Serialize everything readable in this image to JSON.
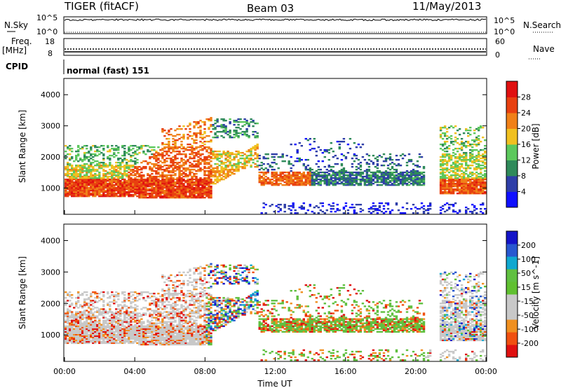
{
  "header": {
    "station": "TIGER (fitACF)",
    "beam": "Beam 03",
    "date": "11/May/2013"
  },
  "strip_labels": {
    "nsky": "N.Sky",
    "nsearch": "N.Search",
    "freq_top": "Freq.",
    "freq_unit": "[MHz]",
    "nave": "Nave",
    "cpid": "CPID",
    "cpid_value": "normal (fast) 151",
    "noise_ticks_left": [
      "10^5",
      "10^0"
    ],
    "noise_ticks_right": [
      "10^5",
      "10^0"
    ],
    "freq_ticks_left": [
      "18",
      "8"
    ],
    "nave_ticks_right": [
      "60",
      "0"
    ]
  },
  "colors": {
    "power": [
      "#1010ff",
      "#2e3ea8",
      "#2f8a5a",
      "#5cc85c",
      "#f0c020",
      "#f08018",
      "#e84010",
      "#e01010"
    ],
    "velocity": [
      "#e01010",
      "#f05010",
      "#f09020",
      "#c8c8c8",
      "#c8c8c8",
      "#60c030",
      "#60c040",
      "#10a8d0",
      "#2858d0",
      "#1414c8"
    ]
  },
  "chart_data": [
    {
      "type": "heatmap",
      "name": "power",
      "xlabel": "Time UT",
      "ylabel": "Slant Range [km]",
      "x_ticks": [
        "00:00",
        "04:00",
        "08:00",
        "12:00",
        "16:00",
        "20:00",
        "00:00"
      ],
      "xlim_hours": [
        0,
        24
      ],
      "y_ticks": [
        "1000",
        "2000",
        "3000",
        "4000"
      ],
      "ylim_km": [
        180,
        4500
      ],
      "colorbar_label": "Power [dB]",
      "colorbar_ticks": [
        "4",
        "8",
        "12",
        "16",
        "20",
        "24",
        "28"
      ],
      "colorbar_range": [
        0,
        32
      ]
    },
    {
      "type": "heatmap",
      "name": "velocity",
      "xlabel": "Time UT",
      "ylabel": "Slant Range [km]",
      "x_ticks": [
        "00:00",
        "04:00",
        "08:00",
        "12:00",
        "16:00",
        "20:00",
        "00:00"
      ],
      "xlim_hours": [
        0,
        24
      ],
      "y_ticks": [
        "1000",
        "2000",
        "3000",
        "4000"
      ],
      "ylim_km": [
        180,
        4500
      ],
      "colorbar_label": "Velocity [m s^-1]",
      "colorbar_ticks": [
        "200",
        "100",
        "50",
        "15",
        "-15",
        "-50",
        "-100",
        "-200"
      ]
    }
  ]
}
